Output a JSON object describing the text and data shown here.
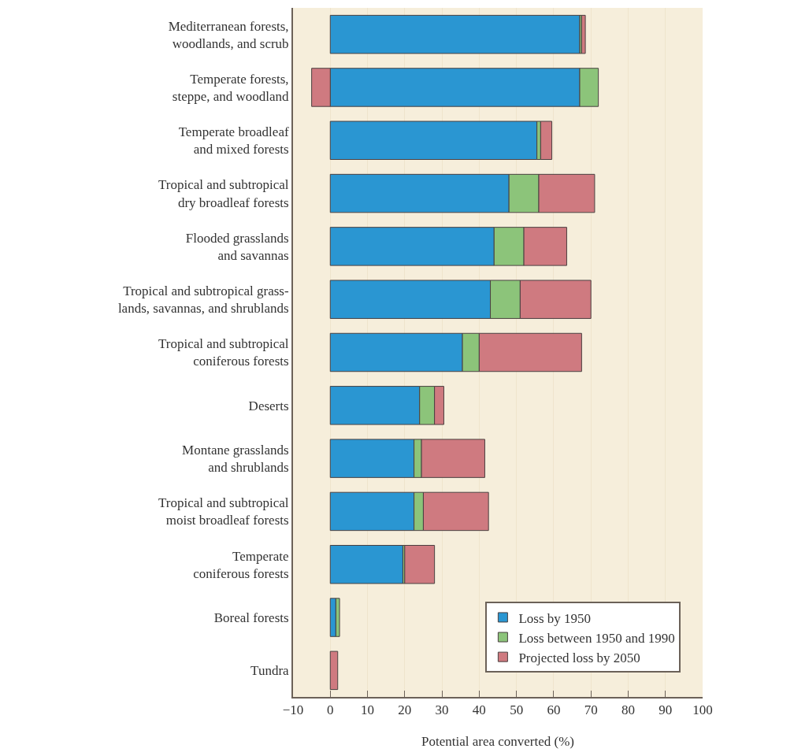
{
  "chart_data": {
    "type": "bar",
    "orientation": "horizontal",
    "stacked": true,
    "xlabel": "Potential area converted (%)",
    "categories": [
      "Mediterranean forests,\nwoodlands, and scrub",
      "Temperate forests,\nsteppe, and woodland",
      "Temperate broadleaf\nand mixed forests",
      "Tropical and subtropical\ndry broadleaf forests",
      "Flooded grasslands\nand savannas",
      "Tropical and subtropical grass-\nlands, savannas, and shrublands",
      "Tropical and subtropical\nconiferous forests",
      "Deserts",
      "Montane grasslands\nand shrublands",
      "Tropical and subtropical\nmoist broadleaf forests",
      "Temperate\nconiferous forests",
      "Boreal forests",
      "Tundra"
    ],
    "series": [
      {
        "name": "Loss by 1950",
        "color": "#2a96d2",
        "values": [
          67,
          67,
          55.5,
          48,
          44,
          43,
          35.5,
          24,
          22.5,
          22.5,
          19.5,
          1.5,
          null
        ]
      },
      {
        "name": "Loss between 1950 and 1990",
        "color": "#8cc47a",
        "values": [
          0.5,
          5,
          1,
          8,
          8,
          8,
          4.5,
          4,
          2,
          2.5,
          0.5,
          1,
          null
        ]
      },
      {
        "name": "Projected loss by 2050",
        "color": "#cf7a80",
        "values": [
          1,
          -5,
          3,
          15,
          11.5,
          19,
          27.5,
          2.5,
          17,
          17.5,
          8,
          null,
          2
        ]
      }
    ],
    "xlim": [
      -10,
      100
    ],
    "xticks": [
      -10,
      0,
      10,
      20,
      30,
      40,
      50,
      60,
      70,
      80,
      90,
      100
    ],
    "grid": "x",
    "legend": "bottom right"
  }
}
